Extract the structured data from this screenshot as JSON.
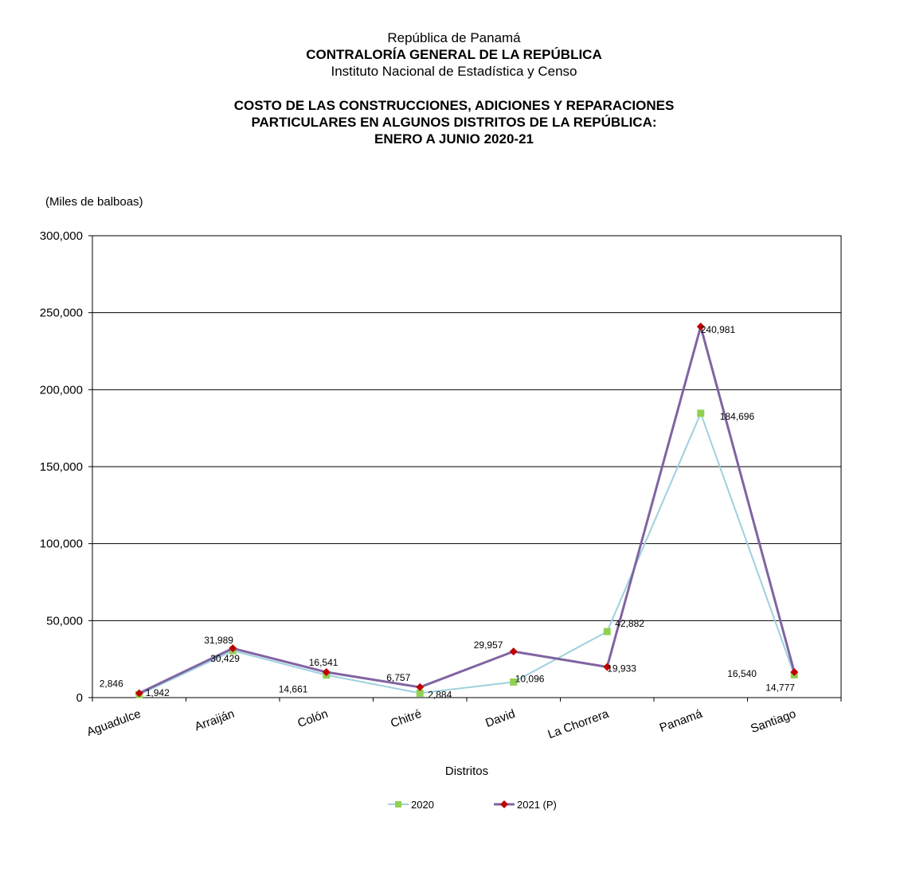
{
  "header": {
    "line1": "República de Panamá",
    "line2": "CONTRALORÍA GENERAL DE LA REPÚBLICA",
    "line3": "Instituto Nacional de Estadística y  Censo"
  },
  "chart_data": {
    "type": "line",
    "title_lines": [
      "COSTO DE LAS CONSTRUCCIONES, ADICIONES Y REPARACIONES",
      "PARTICULARES EN ALGUNOS DISTRITOS DE LA REPÚBLICA:",
      "ENERO A JUNIO 2020-21"
    ],
    "unit_label": "(Miles de balboas)",
    "xlabel": "Distritos",
    "ylim": [
      0,
      300000
    ],
    "yticks": [
      0,
      50000,
      100000,
      150000,
      200000,
      250000,
      300000
    ],
    "ytick_labels": [
      "0",
      "50,000",
      "100,000",
      "150,000",
      "200,000",
      "250,000",
      "300,000"
    ],
    "grid": true,
    "legend_position": "bottom",
    "categories": [
      "Aguadulce",
      "Arraiján",
      "Colón",
      "Chitré",
      "David",
      "La Chorrera",
      "Panamá",
      "Santiago"
    ],
    "series": [
      {
        "name": "2020",
        "values": [
          1942,
          30429,
          14661,
          2884,
          10096,
          42882,
          184696,
          14777
        ],
        "labels": [
          "1,942",
          "30,429",
          "14,661",
          "2,884",
          "10,096",
          "42,882",
          "184,696",
          "14,777"
        ],
        "line_color": "#9ed0e0",
        "marker_color": "#92d050",
        "marker": "square"
      },
      {
        "name": "2021 (P)",
        "values": [
          2846,
          31989,
          16541,
          6757,
          29957,
          19933,
          240981,
          16540
        ],
        "labels": [
          "2,846",
          "31,989",
          "16,541",
          "6,757",
          "29,957",
          "19,933",
          "240,981",
          "16,540"
        ],
        "line_color": "#8064a2",
        "marker_color": "#c00000",
        "marker": "diamond"
      }
    ]
  }
}
